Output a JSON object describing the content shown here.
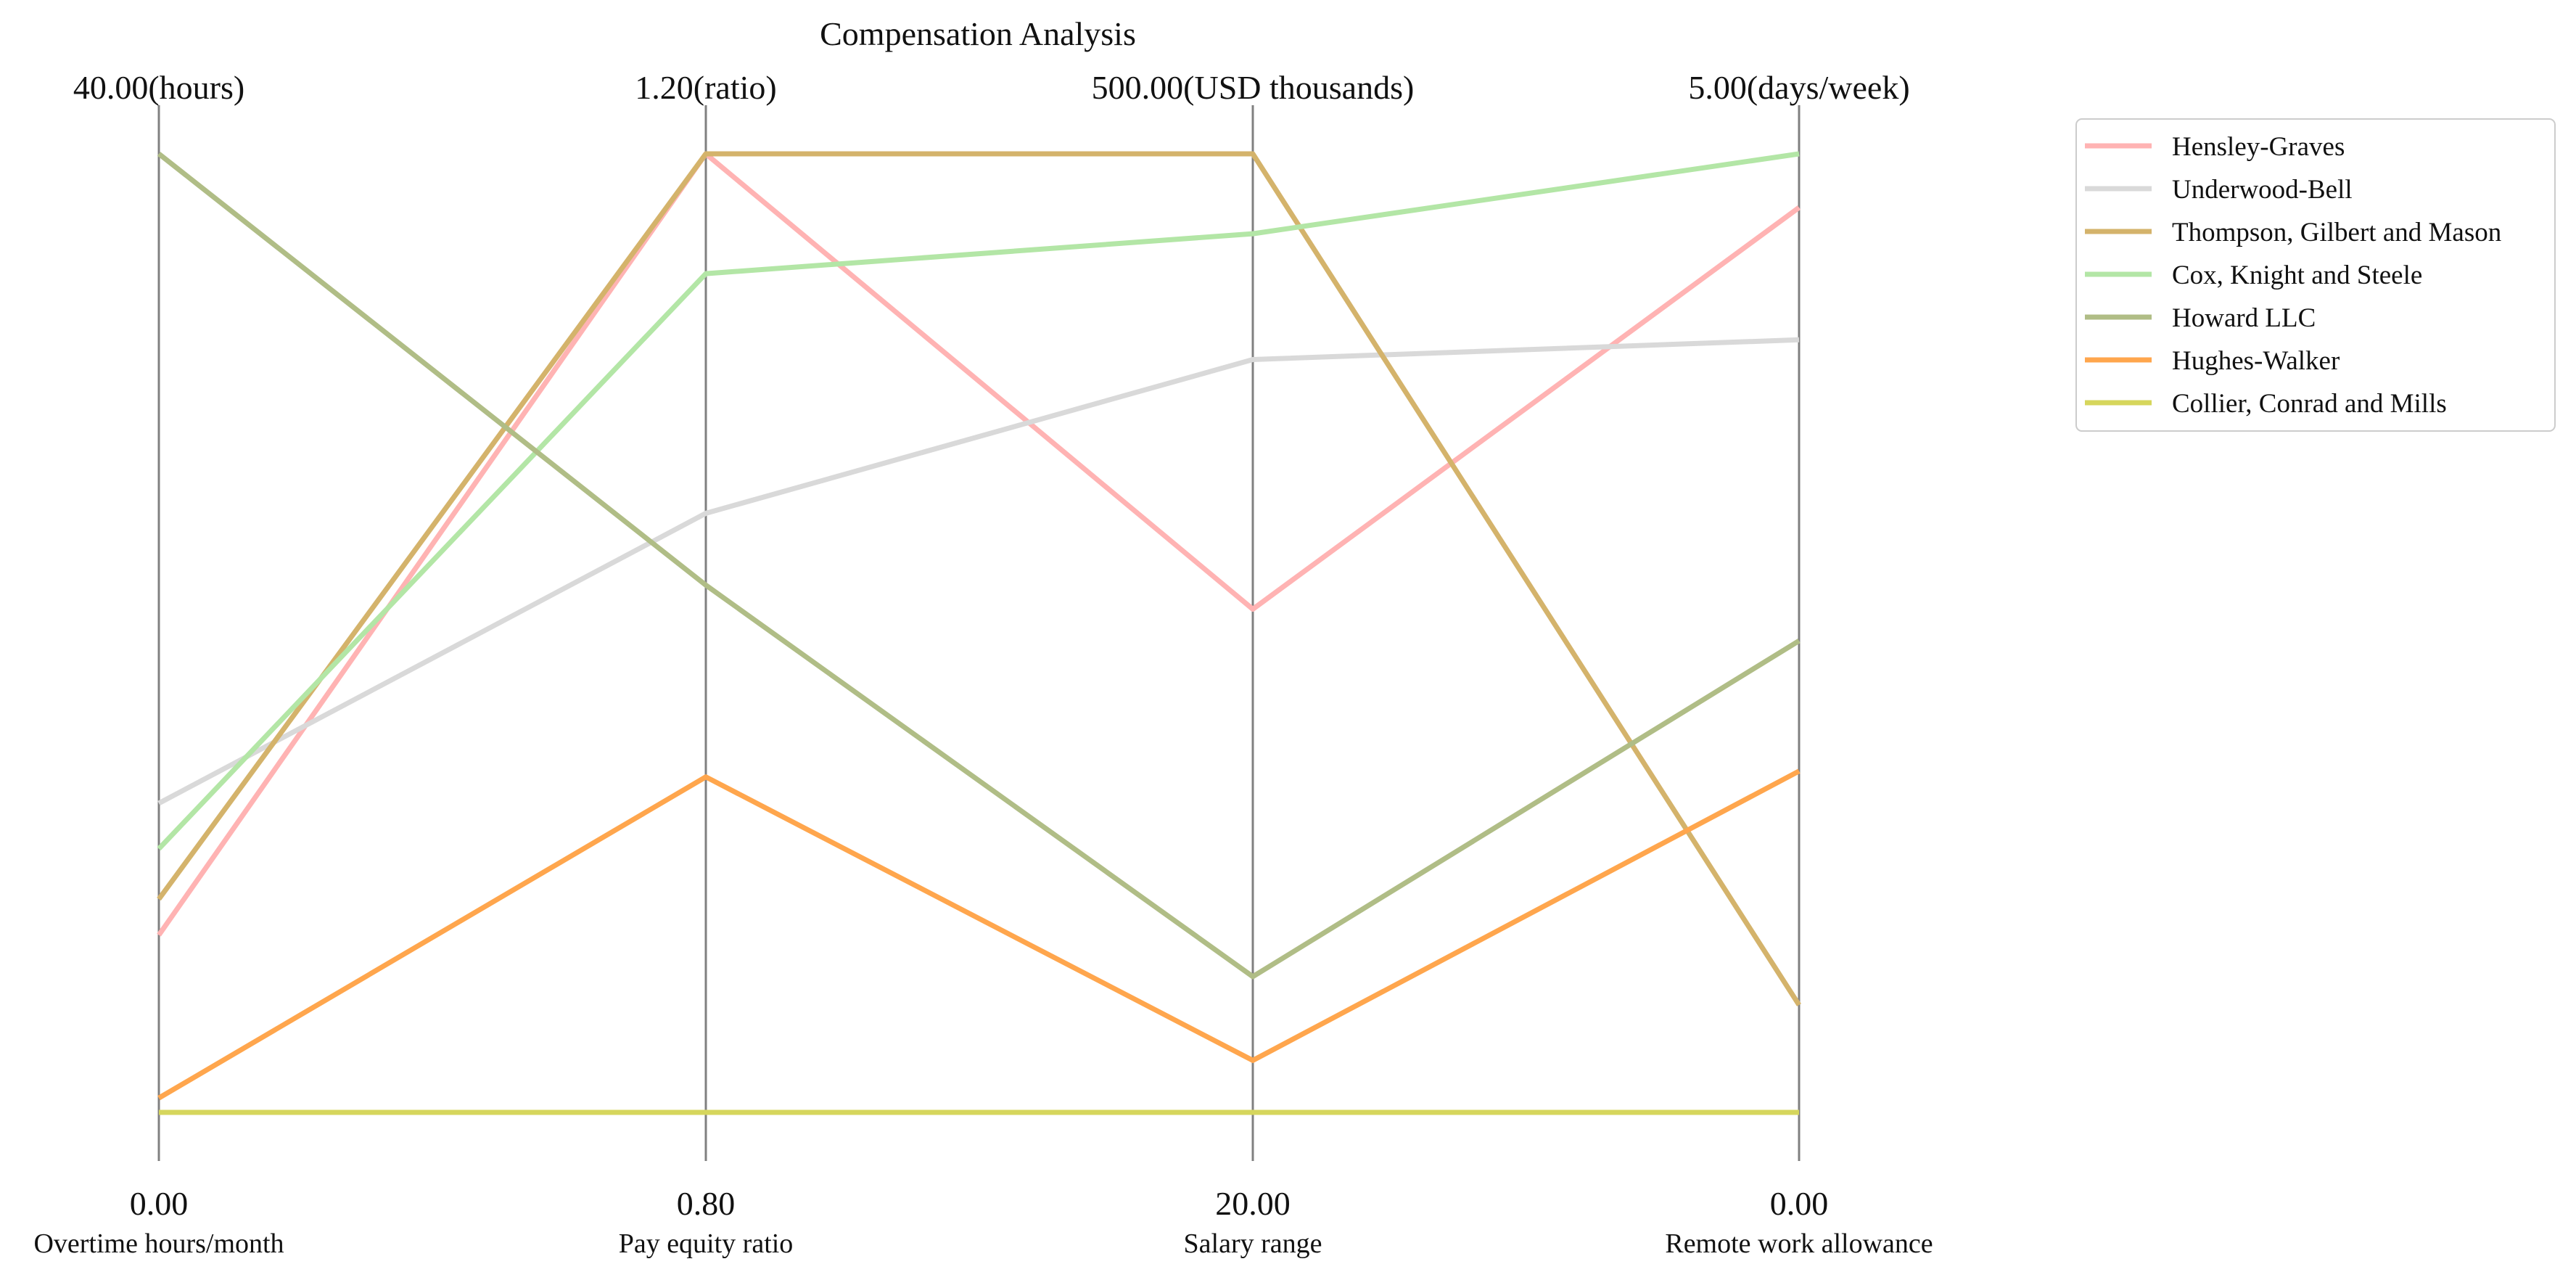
{
  "chart_data": {
    "type": "parallel-coordinates",
    "title": "Compensation Analysis",
    "legend_placement": "outside-top-right",
    "grid": false,
    "axes": [
      {
        "name": "Overtime hours/month",
        "min": 0,
        "max": 40,
        "min_label": "0.00",
        "max_label": "40.00(hours)"
      },
      {
        "name": "Pay equity ratio",
        "min": 0.8,
        "max": 1.2,
        "min_label": "0.80",
        "max_label": "1.20(ratio)"
      },
      {
        "name": "Salary range",
        "min": 20,
        "max": 500,
        "min_label": "20.00",
        "max_label": "500.00(USD thousands)"
      },
      {
        "name": "Remote work allowance",
        "min": 0,
        "max": 5,
        "min_label": "0.00",
        "max_label": "5.00(days/week)"
      }
    ],
    "series": [
      {
        "name": "Hensley-Graves",
        "color": "#ffb3b3",
        "values": [
          7.4,
          1.2,
          272,
          4.72
        ]
      },
      {
        "name": "Underwood-Bell",
        "color": "#d9d9d9",
        "values": [
          12.9,
          1.05,
          397,
          4.03
        ]
      },
      {
        "name": "Thompson, Gilbert and Mason",
        "color": "#d4b36b",
        "values": [
          8.9,
          1.2,
          500,
          0.56
        ]
      },
      {
        "name": "Cox, Knight and Steele",
        "color": "#b3e6a6",
        "values": [
          11.0,
          1.15,
          460,
          5.0
        ]
      },
      {
        "name": "Howard LLC",
        "color": "#b0bd86",
        "values": [
          40.0,
          1.02,
          88,
          2.46
        ]
      },
      {
        "name": "Hughes-Walker",
        "color": "#ffa64d",
        "values": [
          0.6,
          0.94,
          46,
          1.78
        ]
      },
      {
        "name": "Collier, Conrad and Mills",
        "color": "#d6d65c",
        "values": [
          0.0,
          0.8,
          20,
          0.0
        ]
      }
    ]
  }
}
